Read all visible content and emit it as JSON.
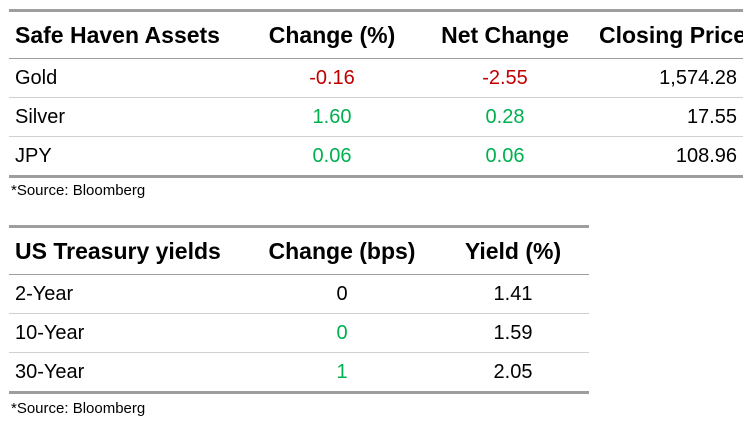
{
  "table1": {
    "headers": [
      "Safe Haven Assets",
      "Change (%)",
      "Net Change",
      "Closing Price"
    ],
    "rows": [
      {
        "name": "Gold",
        "change_pct": "-0.16",
        "net_change": "-2.55",
        "closing": "1,574.28"
      },
      {
        "name": "Silver",
        "change_pct": "1.60",
        "net_change": "0.28",
        "closing": "17.55"
      },
      {
        "name": "JPY",
        "change_pct": "0.06",
        "net_change": "0.06",
        "closing": "108.96"
      }
    ],
    "source": "*Source: Bloomberg"
  },
  "table2": {
    "headers": [
      "US Treasury yields",
      "Change (bps)",
      "Yield (%)"
    ],
    "rows": [
      {
        "name": "2-Year",
        "change_bps": "0",
        "yield": "1.41"
      },
      {
        "name": "10-Year",
        "change_bps": "0",
        "yield": "1.59"
      },
      {
        "name": "30-Year",
        "change_bps": "1",
        "yield": "2.05"
      }
    ],
    "source": "*Source: Bloomberg"
  },
  "colors": {
    "negative": "#c00000",
    "positive": "#00b050",
    "rule": "#9e9e9e"
  }
}
